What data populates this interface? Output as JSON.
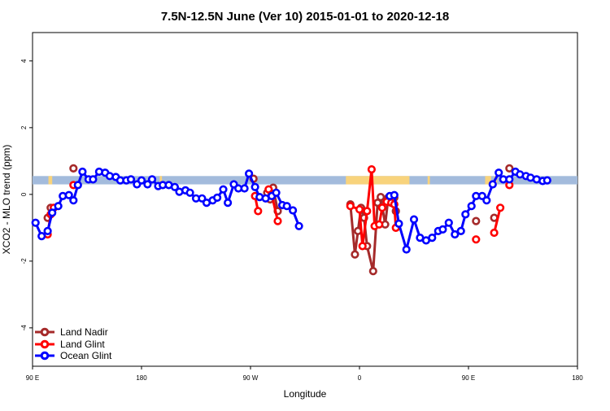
{
  "chart_data": {
    "type": "line",
    "title": "7.5N-12.5N June (Ver 10)   2015-01-01 to 2020-12-18",
    "xlabel": "Longitude",
    "ylabel": "XCO2 - MLO trend (ppm)",
    "xlim": [
      90,
      450
    ],
    "ylim": [
      -5.15,
      4.85
    ],
    "x_ticks": [
      {
        "value": 90,
        "label": "90 E"
      },
      {
        "value": 162,
        "label": "180"
      },
      {
        "value": 234,
        "label": "90 W"
      },
      {
        "value": 306,
        "label": "0"
      },
      {
        "value": 378,
        "label": "90 E"
      },
      {
        "value": 450,
        "label": "180"
      }
    ],
    "y_ticks": [
      {
        "value": -4,
        "label": "-4"
      },
      {
        "value": -2,
        "label": "-2"
      },
      {
        "value": 0,
        "label": "0"
      },
      {
        "value": 2,
        "label": "2"
      },
      {
        "value": 4,
        "label": "4"
      }
    ],
    "legend_position": "bottom-left",
    "land_mask": {
      "colors": {
        "ocean": "#a3bbdc",
        "land": "#f8d37c"
      },
      "y_range": [
        0.3,
        0.55
      ],
      "land_segments": [
        [
          100.5,
          103
        ],
        [
          174,
          175.5
        ],
        [
          297,
          339
        ],
        [
          351,
          352.5
        ],
        [
          389,
          393
        ],
        [
          395,
          397
        ]
      ]
    },
    "series": [
      {
        "name": "Land Nadir",
        "color": "#a52a2a",
        "segments": [
          [
            [
              100,
              -0.7
            ],
            [
              102,
              -0.4
            ]
          ],
          [
            [
              117,
              0.78
            ]
          ],
          [
            [
              236,
              0.47
            ]
          ],
          [
            [
              245,
              0.05
            ],
            [
              247,
              -0.15
            ],
            [
              249,
              0.2
            ],
            [
              252,
              -0.5
            ]
          ],
          [
            [
              300,
              -0.3
            ],
            [
              303,
              -1.8
            ],
            [
              305,
              -1.1
            ],
            [
              307,
              -0.4
            ],
            [
              309,
              -0.7
            ],
            [
              311,
              -1.55
            ],
            [
              315,
              -2.3
            ],
            [
              318,
              -0.25
            ],
            [
              320,
              -0.08
            ],
            [
              323,
              -0.9
            ],
            [
              325,
              -0.1
            ],
            [
              327,
              -0.2
            ],
            [
              329,
              -0.1
            ],
            [
              330,
              -0.5
            ]
          ],
          [
            [
              383,
              -0.8
            ]
          ],
          [
            [
              395,
              -0.7
            ]
          ],
          [
            [
              405,
              0.78
            ]
          ]
        ]
      },
      {
        "name": "Land Glint",
        "color": "#ff0000",
        "segments": [
          [
            [
              100,
              -1.2
            ],
            [
              102,
              -0.6
            ],
            [
              104,
              -0.4
            ]
          ],
          [
            [
              117,
              0.28
            ]
          ],
          [
            [
              237,
              -0.05
            ],
            [
              239,
              -0.5
            ]
          ],
          [
            [
              246,
              0.15
            ],
            [
              248,
              0.0
            ],
            [
              252,
              -0.8
            ]
          ],
          [
            [
              300,
              -0.35
            ],
            [
              306,
              -0.45
            ],
            [
              308,
              -1.55
            ],
            [
              311,
              -0.5
            ],
            [
              314,
              0.75
            ],
            [
              316,
              -0.95
            ],
            [
              319,
              -0.9
            ],
            [
              321,
              -0.4
            ],
            [
              324,
              -0.22
            ],
            [
              327,
              -0.25
            ],
            [
              329,
              -0.3
            ],
            [
              330,
              -1.0
            ]
          ],
          [
            [
              383,
              -1.35
            ]
          ],
          [
            [
              395,
              -1.15
            ],
            [
              399,
              -0.4
            ]
          ],
          [
            [
              405,
              0.28
            ]
          ]
        ]
      },
      {
        "name": "Ocean Glint",
        "color": "#0000ff",
        "segments": [
          [
            [
              92,
              -0.85
            ],
            [
              96,
              -1.25
            ],
            [
              100,
              -1.1
            ],
            [
              103,
              -0.55
            ],
            [
              107,
              -0.35
            ],
            [
              110,
              -0.05
            ],
            [
              114,
              -0.02
            ],
            [
              117,
              -0.18
            ],
            [
              120,
              0.28
            ],
            [
              123,
              0.68
            ],
            [
              127,
              0.45
            ],
            [
              130,
              0.45
            ],
            [
              134,
              0.68
            ],
            [
              138,
              0.65
            ],
            [
              141,
              0.55
            ],
            [
              145,
              0.52
            ],
            [
              148,
              0.42
            ],
            [
              152,
              0.42
            ],
            [
              155,
              0.45
            ],
            [
              159,
              0.3
            ],
            [
              162,
              0.42
            ],
            [
              166,
              0.3
            ],
            [
              169,
              0.45
            ],
            [
              173,
              0.25
            ],
            [
              176,
              0.28
            ],
            [
              180,
              0.28
            ],
            [
              184,
              0.22
            ],
            [
              187,
              0.08
            ],
            [
              191,
              0.12
            ],
            [
              194,
              0.05
            ],
            [
              198,
              -0.12
            ],
            [
              202,
              -0.12
            ],
            [
              205,
              -0.25
            ],
            [
              209,
              -0.18
            ],
            [
              212,
              -0.1
            ],
            [
              216,
              0.15
            ],
            [
              219,
              -0.25
            ],
            [
              223,
              0.3
            ],
            [
              226,
              0.18
            ],
            [
              230,
              0.18
            ],
            [
              233,
              0.62
            ],
            [
              237,
              0.22
            ],
            [
              240,
              -0.08
            ],
            [
              244,
              -0.12
            ],
            [
              248,
              -0.05
            ],
            [
              251,
              0.05
            ],
            [
              255,
              -0.32
            ],
            [
              258,
              -0.35
            ],
            [
              262,
              -0.48
            ],
            [
              266,
              -0.95
            ]
          ],
          [
            [
              326,
              -0.05
            ],
            [
              329,
              -0.02
            ],
            [
              332,
              -0.88
            ],
            [
              337,
              -1.65
            ],
            [
              342,
              -0.75
            ],
            [
              346,
              -1.3
            ],
            [
              350,
              -1.38
            ],
            [
              354,
              -1.3
            ],
            [
              358,
              -1.1
            ],
            [
              361,
              -1.05
            ],
            [
              365,
              -0.85
            ],
            [
              369,
              -1.2
            ],
            [
              373,
              -1.1
            ],
            [
              376,
              -0.6
            ],
            [
              380,
              -0.35
            ],
            [
              383,
              -0.05
            ],
            [
              387,
              -0.05
            ],
            [
              390,
              -0.18
            ],
            [
              394,
              0.3
            ],
            [
              398,
              0.65
            ],
            [
              401,
              0.45
            ],
            [
              405,
              0.45
            ],
            [
              409,
              0.68
            ],
            [
              412,
              0.6
            ],
            [
              416,
              0.55
            ],
            [
              419,
              0.5
            ],
            [
              423,
              0.45
            ],
            [
              427,
              0.4
            ],
            [
              430,
              0.42
            ]
          ]
        ]
      }
    ]
  }
}
